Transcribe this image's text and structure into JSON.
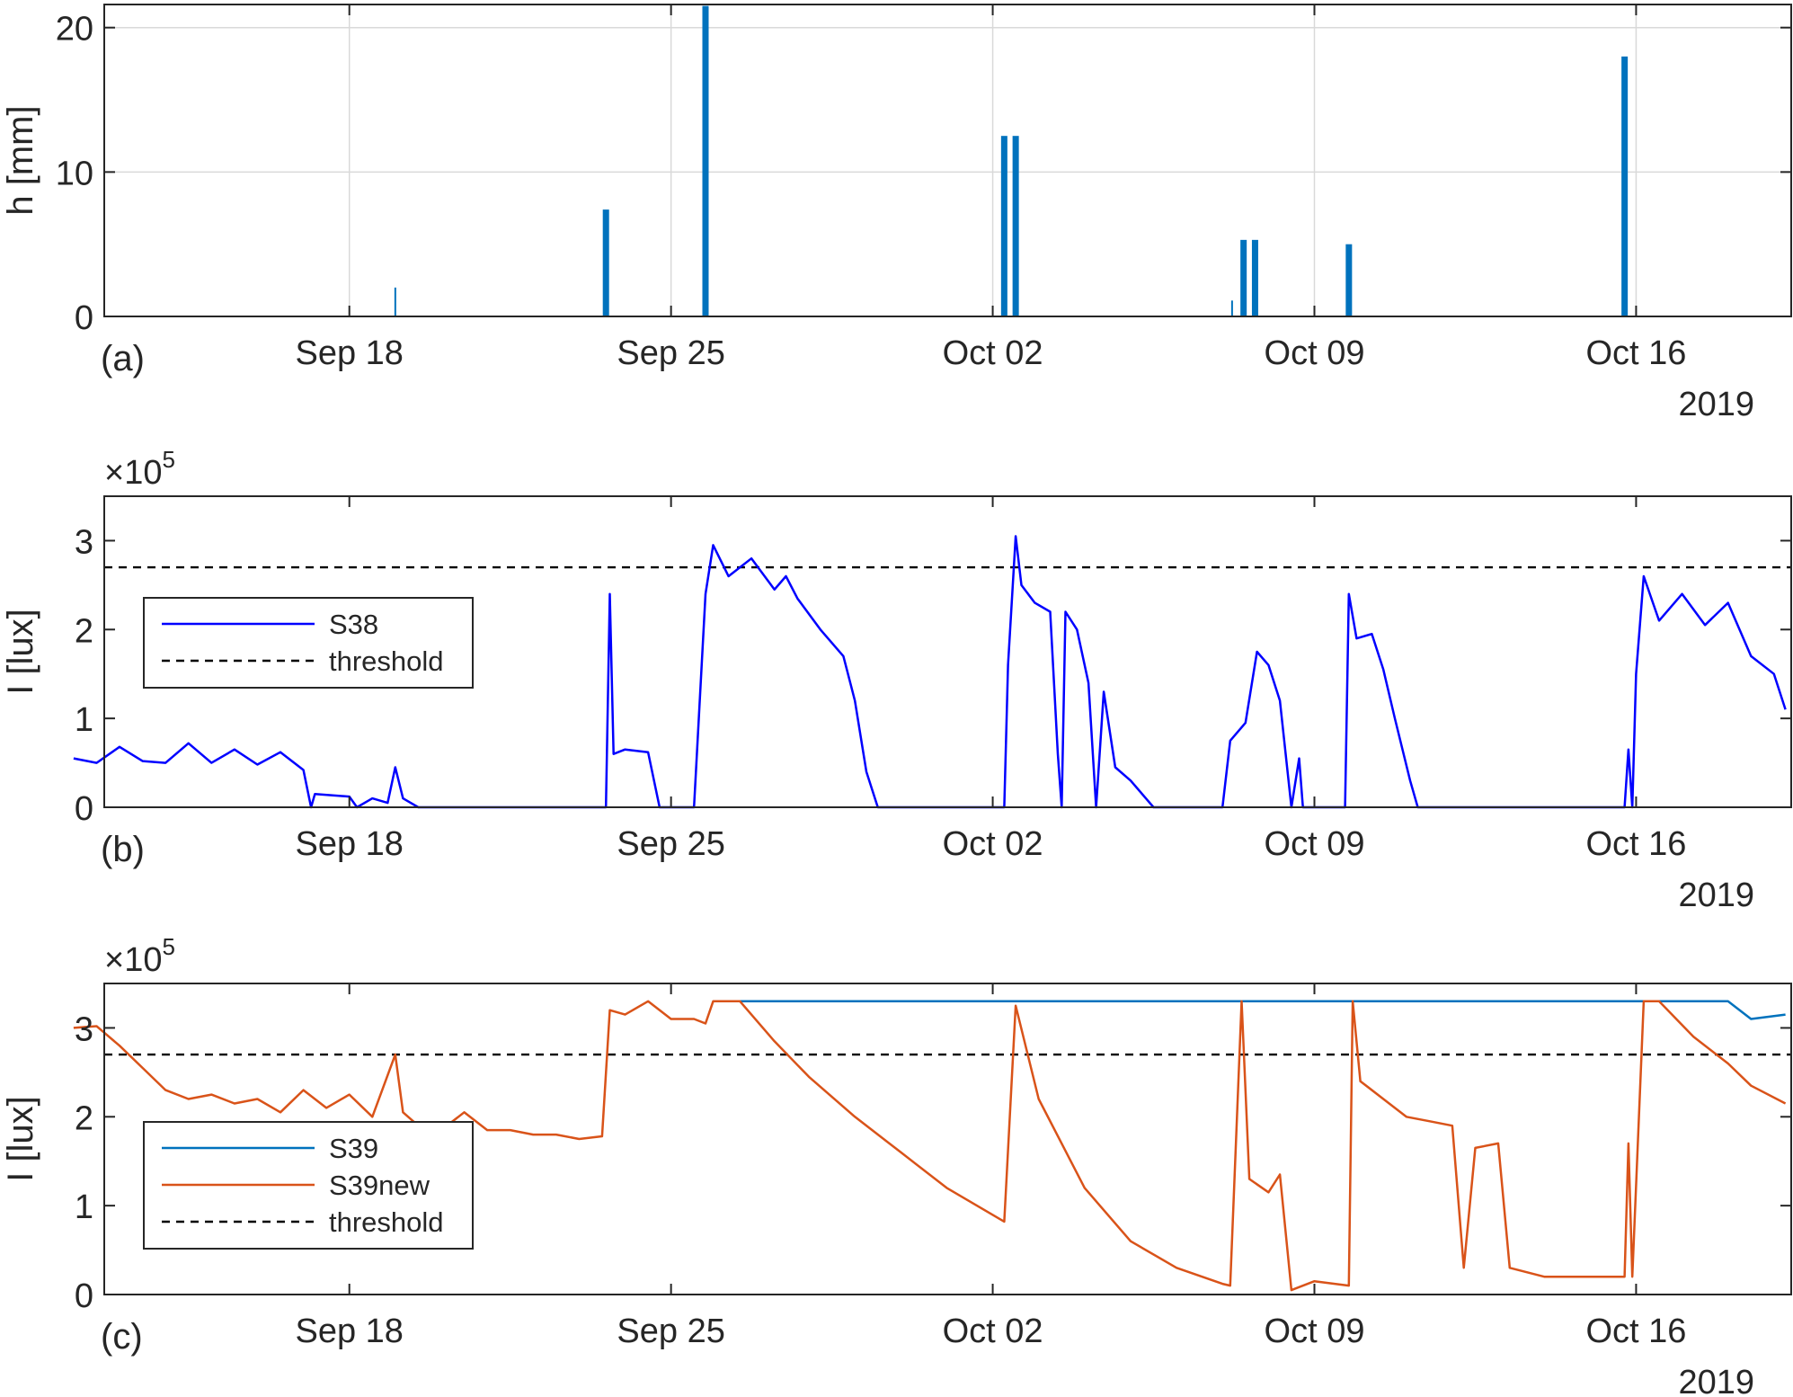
{
  "chart_data": [
    {
      "type": "bar",
      "panel_label": "(a)",
      "ylabel": "h [mm]",
      "ylim": [
        0,
        20
      ],
      "yticks": [
        "0",
        "10",
        "20"
      ],
      "xticks": [
        "Sep 18",
        "Sep 25",
        "Oct 02",
        "Oct 09",
        "Oct 16"
      ],
      "x_year_label": "2019",
      "grid": true,
      "x_range": [
        "2019-09-12",
        "2019-10-18"
      ],
      "series": [
        {
          "color": "#0072BD",
          "points": [
            {
              "x": "2019-09-19 00:00",
              "y": 2.0
            },
            {
              "x": "2019-09-23 14:00",
              "y": 7.4
            },
            {
              "x": "2019-09-25 18:00",
              "y": 21.5
            },
            {
              "x": "2019-10-02 06:00",
              "y": 12.5
            },
            {
              "x": "2019-10-02 12:00",
              "y": 12.5
            },
            {
              "x": "2019-10-07 05:00",
              "y": 1.1
            },
            {
              "x": "2019-10-07 11:00",
              "y": 5.3
            },
            {
              "x": "2019-10-07 17:00",
              "y": 5.3
            },
            {
              "x": "2019-10-09 18:00",
              "y": 5.0
            },
            {
              "x": "2019-10-15 18:00",
              "y": 18.0
            }
          ]
        }
      ]
    },
    {
      "type": "line",
      "panel_label": "(b)",
      "ylabel": "I [lux]",
      "y_multiplier": "×10",
      "y_multiplier_exp": "5",
      "ylim": [
        0,
        3.5
      ],
      "yticks": [
        "0",
        "1",
        "2",
        "3"
      ],
      "xticks": [
        "Sep 18",
        "Sep 25",
        "Oct 02",
        "Oct 09",
        "Oct 16"
      ],
      "x_year_label": "2019",
      "x_range": [
        "2019-09-12",
        "2019-10-18"
      ],
      "legend": {
        "position": "center-left",
        "entries": [
          "S38",
          "threshold"
        ]
      },
      "threshold": 2.7,
      "series": [
        {
          "name": "S38",
          "color": "#0000FF",
          "points": [
            [
              "2019-09-12 00:00",
              0.55
            ],
            [
              "2019-09-12 12:00",
              0.5
            ],
            [
              "2019-09-13 00:00",
              0.68
            ],
            [
              "2019-09-13 12:00",
              0.52
            ],
            [
              "2019-09-14 00:00",
              0.5
            ],
            [
              "2019-09-14 12:00",
              0.72
            ],
            [
              "2019-09-15 00:00",
              0.5
            ],
            [
              "2019-09-15 12:00",
              0.65
            ],
            [
              "2019-09-16 00:00",
              0.48
            ],
            [
              "2019-09-16 12:00",
              0.62
            ],
            [
              "2019-09-17 00:00",
              0.42
            ],
            [
              "2019-09-17 04:00",
              0.0
            ],
            [
              "2019-09-17 06:00",
              0.15
            ],
            [
              "2019-09-18 00:00",
              0.12
            ],
            [
              "2019-09-18 04:00",
              0.0
            ],
            [
              "2019-09-18 12:00",
              0.1
            ],
            [
              "2019-09-18 20:00",
              0.05
            ],
            [
              "2019-09-19 00:00",
              0.45
            ],
            [
              "2019-09-19 04:00",
              0.1
            ],
            [
              "2019-09-19 12:00",
              0.0
            ],
            [
              "2019-09-23 14:00",
              0.0
            ],
            [
              "2019-09-23 16:00",
              2.4
            ],
            [
              "2019-09-23 18:00",
              0.6
            ],
            [
              "2019-09-24 00:00",
              0.65
            ],
            [
              "2019-09-24 12:00",
              0.62
            ],
            [
              "2019-09-24 18:00",
              0.0
            ],
            [
              "2019-09-25 12:00",
              0.0
            ],
            [
              "2019-09-25 18:00",
              2.4
            ],
            [
              "2019-09-25 22:00",
              2.95
            ],
            [
              "2019-09-26 06:00",
              2.6
            ],
            [
              "2019-09-26 18:00",
              2.8
            ],
            [
              "2019-09-27 06:00",
              2.45
            ],
            [
              "2019-09-27 12:00",
              2.6
            ],
            [
              "2019-09-27 18:00",
              2.35
            ],
            [
              "2019-09-28 06:00",
              2.0
            ],
            [
              "2019-09-28 18:00",
              1.7
            ],
            [
              "2019-09-29 00:00",
              1.2
            ],
            [
              "2019-09-29 06:00",
              0.4
            ],
            [
              "2019-09-29 12:00",
              0.0
            ],
            [
              "2019-10-02 06:00",
              0.0
            ],
            [
              "2019-10-02 08:00",
              1.6
            ],
            [
              "2019-10-02 12:00",
              3.05
            ],
            [
              "2019-10-02 15:00",
              2.5
            ],
            [
              "2019-10-02 22:00",
              2.3
            ],
            [
              "2019-10-03 06:00",
              2.2
            ],
            [
              "2019-10-03 10:00",
              0.6
            ],
            [
              "2019-10-03 12:00",
              0.0
            ],
            [
              "2019-10-03 14:00",
              2.2
            ],
            [
              "2019-10-03 20:00",
              2.0
            ],
            [
              "2019-10-04 02:00",
              1.4
            ],
            [
              "2019-10-04 06:00",
              0.0
            ],
            [
              "2019-10-04 10:00",
              1.3
            ],
            [
              "2019-10-04 16:00",
              0.45
            ],
            [
              "2019-10-05 00:00",
              0.3
            ],
            [
              "2019-10-05 12:00",
              0.0
            ],
            [
              "2019-10-07 00:00",
              0.0
            ],
            [
              "2019-10-07 04:00",
              0.75
            ],
            [
              "2019-10-07 12:00",
              0.95
            ],
            [
              "2019-10-07 18:00",
              1.75
            ],
            [
              "2019-10-08 00:00",
              1.6
            ],
            [
              "2019-10-08 06:00",
              1.2
            ],
            [
              "2019-10-08 12:00",
              0.0
            ],
            [
              "2019-10-08 16:00",
              0.55
            ],
            [
              "2019-10-08 18:00",
              0.0
            ],
            [
              "2019-10-09 16:00",
              0.0
            ],
            [
              "2019-10-09 18:00",
              2.4
            ],
            [
              "2019-10-09 22:00",
              1.9
            ],
            [
              "2019-10-10 06:00",
              1.95
            ],
            [
              "2019-10-10 12:00",
              1.55
            ],
            [
              "2019-10-10 18:00",
              1.0
            ],
            [
              "2019-10-11 02:00",
              0.3
            ],
            [
              "2019-10-11 06:00",
              0.0
            ],
            [
              "2019-10-15 18:00",
              0.0
            ],
            [
              "2019-10-15 20:00",
              0.65
            ],
            [
              "2019-10-15 22:00",
              0.0
            ],
            [
              "2019-10-16 00:00",
              1.5
            ],
            [
              "2019-10-16 04:00",
              2.6
            ],
            [
              "2019-10-16 12:00",
              2.1
            ],
            [
              "2019-10-17 00:00",
              2.4
            ],
            [
              "2019-10-17 12:00",
              2.05
            ],
            [
              "2019-10-18 00:00",
              2.3
            ],
            [
              "2019-10-18 12:00",
              1.7
            ],
            [
              "2019-10-19 00:00",
              1.5
            ],
            [
              "2019-10-19 06:00",
              1.1
            ]
          ]
        }
      ]
    },
    {
      "type": "line",
      "panel_label": "(c)",
      "ylabel": "I [lux]",
      "y_multiplier": "×10",
      "y_multiplier_exp": "5",
      "ylim": [
        0,
        3.5
      ],
      "yticks": [
        "0",
        "1",
        "2",
        "3"
      ],
      "xticks": [
        "Sep 18",
        "Sep 25",
        "Oct 02",
        "Oct 09",
        "Oct 16"
      ],
      "x_year_label": "2019",
      "x_range": [
        "2019-09-12",
        "2019-10-18"
      ],
      "legend": {
        "position": "lower-left",
        "entries": [
          "S39",
          "S39new",
          "threshold"
        ]
      },
      "threshold": 2.7,
      "series": [
        {
          "name": "S39",
          "color": "#0072BD",
          "points": [
            [
              "2019-09-26 00:00",
              3.3
            ],
            [
              "2019-10-07 12:00",
              3.3
            ],
            [
              "2019-10-16 00:00",
              3.3
            ],
            [
              "2019-10-18 00:00",
              3.3
            ],
            [
              "2019-10-18 12:00",
              3.1
            ],
            [
              "2019-10-19 06:00",
              3.15
            ]
          ]
        },
        {
          "name": "S39new",
          "color": "#D95319",
          "points": [
            [
              "2019-09-12 00:00",
              3.0
            ],
            [
              "2019-09-12 12:00",
              3.02
            ],
            [
              "2019-09-13 00:00",
              2.8
            ],
            [
              "2019-09-13 12:00",
              2.55
            ],
            [
              "2019-09-14 00:00",
              2.3
            ],
            [
              "2019-09-14 12:00",
              2.2
            ],
            [
              "2019-09-15 00:00",
              2.25
            ],
            [
              "2019-09-15 12:00",
              2.15
            ],
            [
              "2019-09-16 00:00",
              2.2
            ],
            [
              "2019-09-16 12:00",
              2.05
            ],
            [
              "2019-09-17 00:00",
              2.3
            ],
            [
              "2019-09-17 12:00",
              2.1
            ],
            [
              "2019-09-18 00:00",
              2.25
            ],
            [
              "2019-09-18 12:00",
              2.0
            ],
            [
              "2019-09-19 00:00",
              2.7
            ],
            [
              "2019-09-19 04:00",
              2.05
            ],
            [
              "2019-09-19 12:00",
              1.9
            ],
            [
              "2019-09-20 00:00",
              1.85
            ],
            [
              "2019-09-20 12:00",
              2.05
            ],
            [
              "2019-09-21 00:00",
              1.85
            ],
            [
              "2019-09-21 12:00",
              1.85
            ],
            [
              "2019-09-22 00:00",
              1.8
            ],
            [
              "2019-09-22 12:00",
              1.8
            ],
            [
              "2019-09-23 00:00",
              1.75
            ],
            [
              "2019-09-23 12:00",
              1.78
            ],
            [
              "2019-09-23 16:00",
              3.2
            ],
            [
              "2019-09-24 00:00",
              3.15
            ],
            [
              "2019-09-24 12:00",
              3.3
            ],
            [
              "2019-09-25 00:00",
              3.1
            ],
            [
              "2019-09-25 12:00",
              3.1
            ],
            [
              "2019-09-25 18:00",
              3.05
            ],
            [
              "2019-09-25 22:00",
              3.3
            ],
            [
              "2019-09-26 12:00",
              3.3
            ],
            [
              "2019-09-27 06:00",
              2.85
            ],
            [
              "2019-09-28 00:00",
              2.45
            ],
            [
              "2019-09-29 00:00",
              2.0
            ],
            [
              "2019-09-30 00:00",
              1.6
            ],
            [
              "2019-10-01 00:00",
              1.2
            ],
            [
              "2019-10-02 06:00",
              0.82
            ],
            [
              "2019-10-02 12:00",
              3.25
            ],
            [
              "2019-10-03 00:00",
              2.2
            ],
            [
              "2019-10-04 00:00",
              1.2
            ],
            [
              "2019-10-05 00:00",
              0.6
            ],
            [
              "2019-10-06 00:00",
              0.3
            ],
            [
              "2019-10-07 00:00",
              0.12
            ],
            [
              "2019-10-07 04:00",
              0.1
            ],
            [
              "2019-10-07 10:00",
              3.3
            ],
            [
              "2019-10-07 14:00",
              1.3
            ],
            [
              "2019-10-08 00:00",
              1.15
            ],
            [
              "2019-10-08 06:00",
              1.35
            ],
            [
              "2019-10-08 12:00",
              0.05
            ],
            [
              "2019-10-09 00:00",
              0.15
            ],
            [
              "2019-10-09 18:00",
              0.1
            ],
            [
              "2019-10-09 20:00",
              3.3
            ],
            [
              "2019-10-10 00:00",
              2.4
            ],
            [
              "2019-10-10 12:00",
              2.2
            ],
            [
              "2019-10-11 00:00",
              2.0
            ],
            [
              "2019-10-11 12:00",
              1.95
            ],
            [
              "2019-10-12 00:00",
              1.9
            ],
            [
              "2019-10-12 06:00",
              0.3
            ],
            [
              "2019-10-12 12:00",
              1.65
            ],
            [
              "2019-10-13 00:00",
              1.7
            ],
            [
              "2019-10-13 06:00",
              0.3
            ],
            [
              "2019-10-14 00:00",
              0.2
            ],
            [
              "2019-10-15 00:00",
              0.2
            ],
            [
              "2019-10-15 18:00",
              0.2
            ],
            [
              "2019-10-15 20:00",
              1.7
            ],
            [
              "2019-10-15 22:00",
              0.2
            ],
            [
              "2019-10-16 04:00",
              3.3
            ],
            [
              "2019-10-16 12:00",
              3.3
            ],
            [
              "2019-10-17 06:00",
              2.9
            ],
            [
              "2019-10-18 00:00",
              2.6
            ],
            [
              "2019-10-18 12:00",
              2.35
            ],
            [
              "2019-10-19 06:00",
              2.15
            ]
          ]
        }
      ]
    }
  ]
}
